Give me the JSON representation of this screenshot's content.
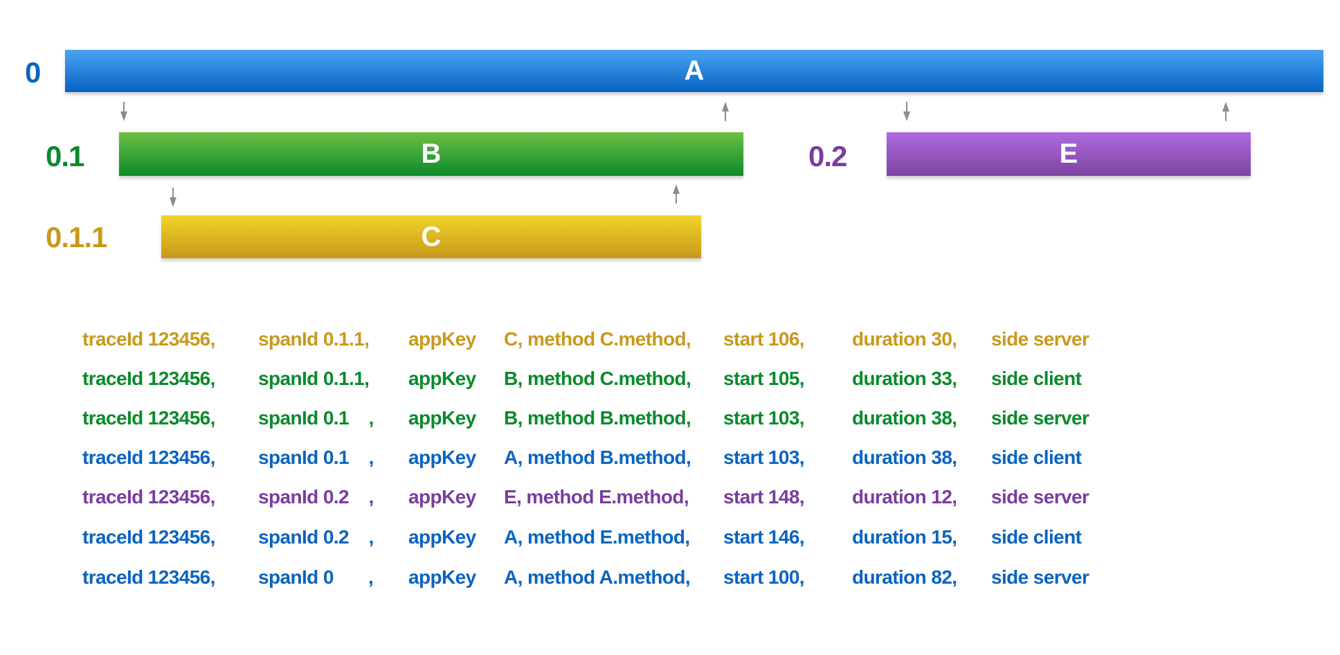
{
  "colors": {
    "blue": "#0b64c0",
    "green": "#0b8a2c",
    "gold": "#c8991c",
    "purple": "#7a3d9e"
  },
  "spans": [
    {
      "id": "A",
      "level": "0",
      "color": "blue",
      "gradient": [
        "#4ba3f2",
        "#0663c3"
      ]
    },
    {
      "id": "B",
      "level": "0.1",
      "color": "green",
      "gradient": [
        "#6cbf45",
        "#0d8a2a"
      ]
    },
    {
      "id": "E",
      "level": "0.2",
      "color": "purple",
      "gradient": [
        "#b06be2",
        "#7c44a0"
      ]
    },
    {
      "id": "C",
      "level": "0.1.1",
      "color": "gold",
      "gradient": [
        "#f2d42a",
        "#c8981a"
      ]
    }
  ],
  "arrows": [
    {
      "direction": "down",
      "icon": "arrow-down-icon"
    },
    {
      "direction": "up",
      "icon": "arrow-up-icon"
    },
    {
      "direction": "down",
      "icon": "arrow-down-icon"
    },
    {
      "direction": "up",
      "icon": "arrow-up-icon"
    },
    {
      "direction": "down",
      "icon": "arrow-down-icon"
    },
    {
      "direction": "up",
      "icon": "arrow-up-icon"
    }
  ],
  "arrow_color": "#8a8d90",
  "log_rows": [
    {
      "color": "gold",
      "traceId": "traceId 123456,",
      "spanId": "spanId 0.1.1,",
      "appKey": "appKey",
      "app": "C, method C.method,",
      "start": "start 106,",
      "duration": "duration 30,",
      "side": "side server"
    },
    {
      "color": "green",
      "traceId": "traceId 123456,",
      "spanId": "spanId 0.1.1,",
      "appKey": "appKey",
      "app": "B, method C.method,",
      "start": "start 105,",
      "duration": "duration 33,",
      "side": "side client"
    },
    {
      "color": "green",
      "traceId": "traceId 123456,",
      "spanId": "spanId 0.1    ,",
      "appKey": "appKey",
      "app": "B, method B.method,",
      "start": "start 103,",
      "duration": "duration 38,",
      "side": "side server"
    },
    {
      "color": "blue",
      "traceId": "traceId 123456,",
      "spanId": "spanId 0.1    ,",
      "appKey": "appKey",
      "app": "A, method B.method,",
      "start": "start 103,",
      "duration": "duration 38,",
      "side": "side client"
    },
    {
      "color": "purple",
      "traceId": "traceId 123456,",
      "spanId": "spanId 0.2    ,",
      "appKey": "appKey",
      "app": "E, method E.method,",
      "start": "start 148,",
      "duration": "duration 12,",
      "side": "side server"
    },
    {
      "color": "blue",
      "traceId": "traceId 123456,",
      "spanId": "spanId 0.2    ,",
      "appKey": "appKey",
      "app": "A, method E.method,",
      "start": "start 146,",
      "duration": "duration 15,",
      "side": "side client"
    },
    {
      "color": "blue",
      "traceId": "traceId 123456,",
      "spanId": "spanId 0       ,",
      "appKey": "appKey",
      "app": "A, method A.method,",
      "start": "start 100,",
      "duration": "duration 82,",
      "side": "side server"
    }
  ]
}
